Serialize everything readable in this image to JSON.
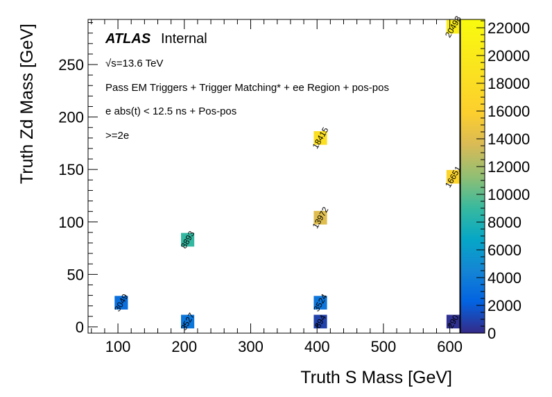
{
  "chart_data": {
    "type": "heatmap",
    "title": "",
    "xlabel": "Truth S Mass [GeV]",
    "ylabel": "Truth Zd Mass [GeV]",
    "xlim": [
      55,
      615
    ],
    "ylim": [
      -6,
      293
    ],
    "x_ticks": [
      100,
      200,
      300,
      400,
      500,
      600
    ],
    "y_ticks": [
      0,
      50,
      100,
      150,
      200,
      250
    ],
    "z_ticks": [
      0,
      2000,
      4000,
      6000,
      8000,
      10000,
      12000,
      14000,
      16000,
      18000,
      20000,
      22000
    ],
    "zlim": [
      0,
      22600
    ],
    "bin_width": 20,
    "bin_height": 13,
    "cells": [
      {
        "x": 105,
        "y": 23,
        "value": "3049",
        "z": 3049
      },
      {
        "x": 205,
        "y": 5,
        "value": "3527",
        "z": 3527
      },
      {
        "x": 205,
        "y": 83,
        "value": "8893",
        "z": 8893
      },
      {
        "x": 405,
        "y": 5,
        "value": "894",
        "z": 894
      },
      {
        "x": 405,
        "y": 23,
        "value": "3524",
        "z": 3524
      },
      {
        "x": 405,
        "y": 104,
        "value": "13972",
        "z": 13972
      },
      {
        "x": 405,
        "y": 180,
        "value": "18415",
        "z": 18415
      },
      {
        "x": 605,
        "y": 5,
        "value": "290",
        "z": 290
      },
      {
        "x": 605,
        "y": 143,
        "value": "16651",
        "z": 16651
      },
      {
        "x": 605,
        "y": 286,
        "value": "20498",
        "z": 20498
      }
    ],
    "grid": false,
    "legend": "none",
    "colormap": "parula"
  },
  "annotations": {
    "atlas": "ATLAS",
    "internal": "Internal",
    "sqrt_sym": "√s=13.6 TeV",
    "line1": "Pass EM Triggers + Trigger Matching* + ee Region + pos-pos",
    "line2": "e abs(t) < 12.5 ns + Pos-pos",
    "line3": ">=2e"
  }
}
